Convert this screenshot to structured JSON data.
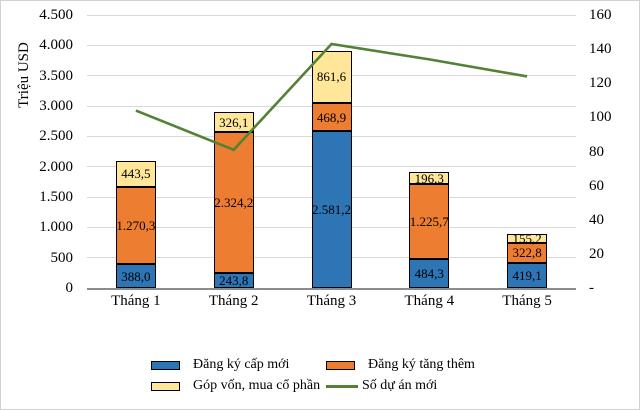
{
  "chart_data": {
    "type": "bar",
    "subtype": "stacked-column-with-line",
    "categories": [
      "Tháng 1",
      "Tháng 2",
      "Tháng 3",
      "Tháng 4",
      "Tháng 5"
    ],
    "series": [
      {
        "name": "Đăng ký cấp mới",
        "type": "bar",
        "color": "#2E75B6",
        "values": [
          388.0,
          243.8,
          2581.2,
          484.3,
          419.1
        ],
        "labels": [
          "388,0",
          "243,8",
          "2.581,2",
          "484,3",
          "419,1"
        ]
      },
      {
        "name": "Đăng ký tăng thêm",
        "type": "bar",
        "color": "#ED7D31",
        "values": [
          1270.3,
          2324.2,
          468.9,
          1225.7,
          322.8
        ],
        "labels": [
          "1.270,3",
          "2.324,2",
          "468,9",
          "1.225,7",
          "322,8"
        ]
      },
      {
        "name": "Góp vốn, mua cổ phần",
        "type": "bar",
        "color": "#FFE699",
        "values": [
          443.5,
          326.1,
          861.6,
          196.3,
          155.2
        ],
        "labels": [
          "443,5",
          "326,1",
          "861,6",
          "196,3",
          "155,2"
        ]
      },
      {
        "name": "Số dự án mới",
        "type": "line",
        "axis": "right",
        "color": "#548235",
        "values": [
          104,
          81,
          143,
          134,
          124
        ]
      }
    ],
    "left_axis": {
      "title": "Triệu USD",
      "min": 0,
      "max": 4500,
      "step": 500,
      "tick_labels": [
        "0",
        "500",
        "1.000",
        "1.500",
        "2.000",
        "2.500",
        "3.000",
        "3.500",
        "4.000",
        "4.500"
      ]
    },
    "right_axis": {
      "min": 0,
      "max": 160,
      "step": 20,
      "tick_labels": [
        "-",
        "20",
        "40",
        "60",
        "80",
        "100",
        "120",
        "140",
        "160"
      ]
    },
    "grid": true,
    "legend_position": "bottom",
    "colors": {
      "gridline": "#D9D9D9",
      "axis_line": "#8C8C8C",
      "bar_border": "#000000"
    }
  }
}
